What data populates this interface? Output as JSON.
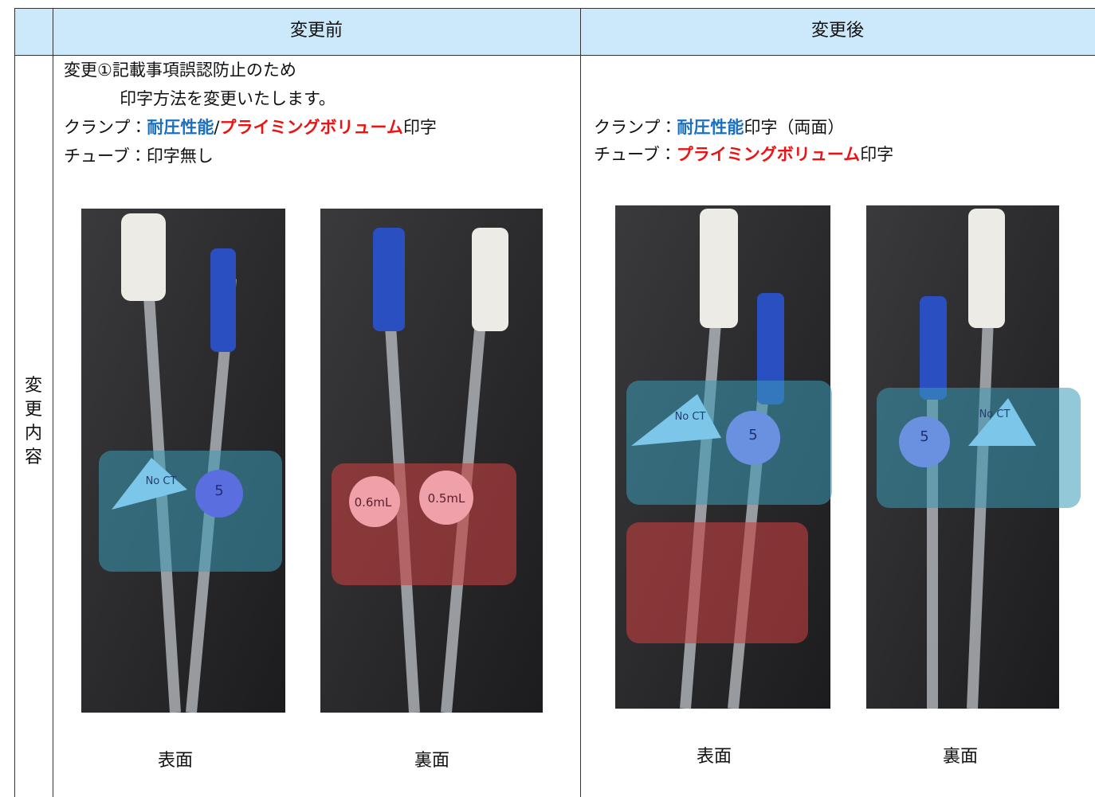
{
  "table": {
    "header": [
      "変更前",
      "変更後"
    ],
    "row_label": [
      "変",
      "更",
      "内",
      "容"
    ],
    "before": {
      "title": "変更①記載事項誤認防止のため",
      "subtitle": "印字方法を変更いたします。",
      "clamp": {
        "label": "クランプ：",
        "pressure": "耐圧性能",
        "sep": "/",
        "priming": "プライミングボリューム",
        "suffix": "印字"
      },
      "tube": "チューブ：印字無し",
      "captions": [
        "表面",
        "裏面"
      ],
      "photo_labels": [
        "No CT",
        "5",
        "0.6mL",
        "0.5mL"
      ]
    },
    "after": {
      "clamp": {
        "label": "クランプ：",
        "pressure": "耐圧性能",
        "suffix": "印字（両面）"
      },
      "tube": {
        "label": "チューブ：",
        "priming": "プライミングボリューム",
        "suffix": "印字"
      },
      "captions": [
        "表面",
        "裏面"
      ],
      "photo_labels": [
        "No CT",
        "5",
        "No CT",
        "5"
      ]
    }
  }
}
